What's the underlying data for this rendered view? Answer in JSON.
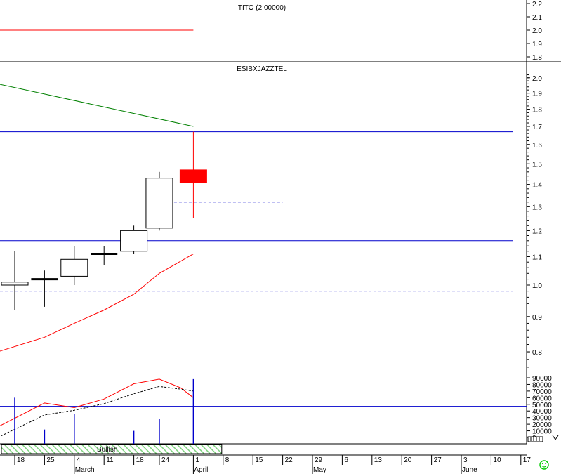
{
  "chart_data": [
    {
      "type": "line",
      "title": "TITO (2.00000)",
      "ylim": [
        1.75,
        2.25
      ],
      "yticks": [
        "1.8",
        "1.9",
        "2.0",
        "2.1",
        "2.2"
      ],
      "series": [
        {
          "color": "#ff0000",
          "x": [
            "Feb 14",
            "Apr 1"
          ],
          "values": [
            2.0,
            2.0
          ]
        }
      ]
    },
    {
      "type": "candlestick",
      "title": "ESIBXJAZZTEL",
      "ylim": [
        0.75,
        2.05
      ],
      "scale": "log",
      "yticks": [
        "0.8",
        "0.9",
        "1.0",
        "1.1",
        "1.2",
        "1.3",
        "1.4",
        "1.5",
        "1.6",
        "1.7",
        "1.8",
        "1.9",
        "2.0"
      ],
      "candles": [
        {
          "date": "Feb 18",
          "open": 1.0,
          "high": 1.12,
          "low": 0.92,
          "close": 1.01
        },
        {
          "date": "Feb 25",
          "open": 1.02,
          "high": 1.05,
          "low": 0.93,
          "close": 1.02
        },
        {
          "date": "Mar 4",
          "open": 1.03,
          "high": 1.14,
          "low": 1.0,
          "close": 1.09
        },
        {
          "date": "Mar 11",
          "open": 1.11,
          "high": 1.14,
          "low": 1.07,
          "close": 1.11
        },
        {
          "date": "Mar 18",
          "open": 1.12,
          "high": 1.22,
          "low": 1.11,
          "close": 1.2
        },
        {
          "date": "Mar 24",
          "open": 1.21,
          "high": 1.46,
          "low": 1.2,
          "close": 1.43
        },
        {
          "date": "Apr 1",
          "open": 1.47,
          "high": 1.67,
          "low": 1.25,
          "close": 1.41
        }
      ],
      "lines": [
        {
          "color": "#008000",
          "x": [
            "Feb 14",
            "Apr 1"
          ],
          "values": [
            1.96,
            1.7
          ]
        },
        {
          "color": "#ff0000",
          "x": [
            "Feb 14",
            "Feb 25",
            "Mar 4",
            "Mar 11",
            "Mar 18",
            "Mar 24",
            "Apr 1"
          ],
          "values": [
            0.8,
            0.84,
            0.88,
            0.92,
            0.97,
            1.04,
            1.11
          ]
        }
      ],
      "hlines": [
        {
          "value": 1.67,
          "color": "#0000cc",
          "style": "solid"
        },
        {
          "value": 1.16,
          "color": "#0000cc",
          "style": "solid"
        },
        {
          "value": 0.98,
          "color": "#0000cc",
          "style": "dashed"
        },
        {
          "value": 1.32,
          "color": "#0000cc",
          "style": "dashed",
          "from": "Mar 24",
          "to": "Apr 22"
        }
      ]
    },
    {
      "type": "bar",
      "title": "",
      "ylim": [
        0,
        95000
      ],
      "yticks": [
        "0",
        "10000",
        "20000",
        "30000",
        "40000",
        "50000",
        "60000",
        "70000",
        "80000",
        "90000"
      ],
      "bars": [
        {
          "date": "Feb 18",
          "value": 60000
        },
        {
          "date": "Feb 25",
          "value": 12000
        },
        {
          "date": "Mar 4",
          "value": 35000
        },
        {
          "date": "Mar 18",
          "value": 10000
        },
        {
          "date": "Mar 24",
          "value": 28000
        },
        {
          "date": "Apr 1",
          "value": 88000
        }
      ],
      "lines": [
        {
          "color": "#ff0000",
          "style": "solid",
          "x": [
            "Feb 14",
            "Feb 25",
            "Mar 4",
            "Mar 11",
            "Mar 18",
            "Mar 24",
            "Mar 29",
            "Apr 1"
          ],
          "values": [
            16000,
            52000,
            45000,
            58000,
            81000,
            88000,
            75000,
            60000
          ]
        },
        {
          "color": "#000000",
          "style": "dashed",
          "x": [
            "Feb 14",
            "Feb 25",
            "Mar 4",
            "Mar 11",
            "Mar 18",
            "Mar 24",
            "Mar 29",
            "Apr 1"
          ],
          "values": [
            0,
            34000,
            41000,
            51000,
            66000,
            77000,
            73000,
            70000
          ]
        }
      ],
      "hlines": [
        {
          "value": 47000,
          "color": "#0000cc",
          "style": "solid"
        }
      ]
    }
  ],
  "signal": {
    "label": "Bullish",
    "from": "Feb 14",
    "to": "Apr 8",
    "fill": "#7fd27f"
  },
  "x_axis": {
    "day_ticks": [
      {
        "date": "Feb 18",
        "label": "18"
      },
      {
        "date": "Feb 25",
        "label": "25"
      },
      {
        "date": "Mar 4",
        "label": "4"
      },
      {
        "date": "Mar 11",
        "label": "11"
      },
      {
        "date": "Mar 18",
        "label": "18"
      },
      {
        "date": "Mar 24",
        "label": "24"
      },
      {
        "date": "Apr 1",
        "label": "1"
      },
      {
        "date": "Apr 8",
        "label": "8"
      },
      {
        "date": "Apr 15",
        "label": "15"
      },
      {
        "date": "Apr 22",
        "label": "22"
      },
      {
        "date": "Apr 29",
        "label": "29"
      },
      {
        "date": "May 6",
        "label": "6"
      },
      {
        "date": "May 13",
        "label": "13"
      },
      {
        "date": "May 20",
        "label": "20"
      },
      {
        "date": "May 27",
        "label": "27"
      },
      {
        "date": "Jun 3",
        "label": "3"
      },
      {
        "date": "Jun 10",
        "label": "10"
      },
      {
        "date": "Jun 17",
        "label": "17"
      }
    ],
    "month_labels": [
      {
        "date": "Mar 4",
        "label": "March"
      },
      {
        "date": "Apr 1",
        "label": "April"
      },
      {
        "date": "Apr 29",
        "label": "May"
      },
      {
        "date": "Jun 3",
        "label": "June"
      }
    ]
  },
  "colors": {
    "axis": "#000000",
    "bull_candle_fill": "#ffffff",
    "bear_candle_fill": "#ff0000",
    "bear_candle_wick": "#ff0000",
    "volume_bar": "#0000cc",
    "smiley": "#00cc00"
  },
  "icons": {
    "status": "smiley-icon",
    "scrollbar": "scroll-thumb-icon"
  }
}
